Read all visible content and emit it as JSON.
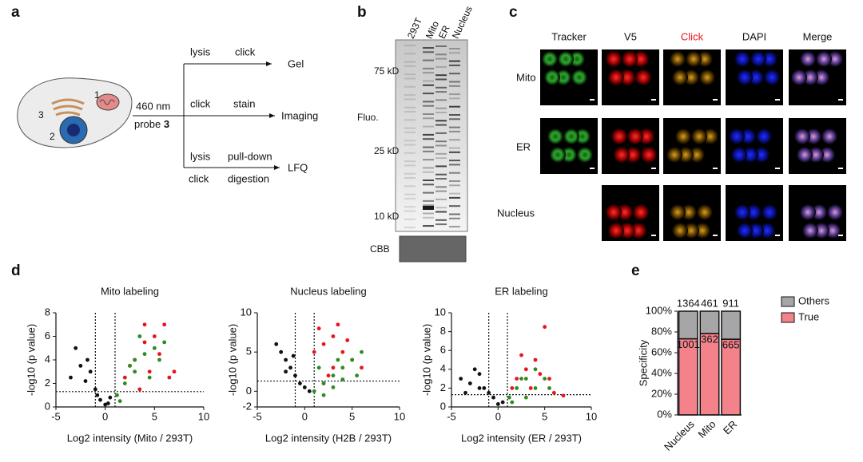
{
  "panel_labels": [
    "a",
    "b",
    "c",
    "d",
    "e"
  ],
  "panel_a": {
    "organelles": [
      "1",
      "2",
      "3"
    ],
    "light": "460 nm",
    "probe": "probe",
    "probe_number": "3",
    "branches": [
      {
        "above": [
          "lysis",
          "click"
        ],
        "below": [],
        "target": "Gel"
      },
      {
        "above": [
          "click",
          "stain"
        ],
        "below": [],
        "target": "Imaging"
      },
      {
        "above": [
          "lysis",
          "pull-down"
        ],
        "below": [
          "click",
          "digestion"
        ],
        "target": "LFQ"
      }
    ]
  },
  "panel_b": {
    "lanes": [
      "293T",
      "Mito",
      "ER",
      "Nucleus"
    ],
    "markers": [
      "75 kD",
      "25 kD",
      "10 kD"
    ],
    "stain": "Fluo.",
    "loading": "CBB"
  },
  "panel_c": {
    "columns": [
      "Tracker",
      "V5",
      "Click",
      "DAPI",
      "Merge"
    ],
    "rows": [
      "Mito",
      "ER",
      "Nucleus"
    ]
  },
  "chart_data": [
    {
      "type": "scatter",
      "title": "Mito labeling",
      "x_label": "Log2 intensity (Mito / 293T)",
      "y_label": "-log10 (p value)",
      "xlim": [
        -5,
        10
      ],
      "xticks": [
        -5,
        0,
        5,
        10
      ],
      "ylim": [
        0,
        8
      ],
      "yticks": [
        0,
        2,
        4,
        6,
        8
      ],
      "thresholds": {
        "x": [
          -1,
          1
        ],
        "y": 1.3
      },
      "series": [
        {
          "color": "#111111",
          "x": [
            -3,
            -2.5,
            -2,
            -1.5,
            -1,
            -0.5,
            0,
            0.5,
            -1.8,
            -3.5,
            -0.8,
            0.3
          ],
          "values": [
            5,
            3.5,
            2.2,
            3,
            1.5,
            0.6,
            0.2,
            0.8,
            4,
            2.5,
            1,
            0.3
          ]
        },
        {
          "color": "#e8141b",
          "x": [
            2,
            3,
            4,
            5,
            6,
            4.5,
            3.5,
            5.5,
            6.5,
            2.5,
            4,
            7
          ],
          "values": [
            2.5,
            4,
            5.5,
            6,
            7,
            3,
            1.5,
            4.5,
            2.5,
            3.5,
            7,
            3
          ]
        },
        {
          "color": "#2e8b22",
          "x": [
            1.2,
            2,
            3,
            4,
            5,
            3.5,
            2.5,
            4.5,
            1.5,
            5.5,
            3,
            6
          ],
          "values": [
            1,
            2,
            3,
            4.5,
            5,
            6,
            3.5,
            2.5,
            0.5,
            4,
            4,
            5.5
          ]
        }
      ]
    },
    {
      "type": "scatter",
      "title": "Nucleus labeling",
      "x_label": "Log2 intensity (H2B / 293T)",
      "y_label": "-log10 (p value)",
      "xlim": [
        -5,
        10
      ],
      "xticks": [
        -5,
        0,
        5,
        10
      ],
      "ylim": [
        -2,
        10
      ],
      "yticks": [
        -2,
        0,
        5,
        10
      ],
      "thresholds": {
        "x": [
          -1,
          1
        ],
        "y": 1.3
      },
      "series": [
        {
          "color": "#111111",
          "x": [
            -3,
            -2.5,
            -2,
            -1.5,
            -1,
            -0.5,
            0,
            0.5,
            -2,
            -1.2
          ],
          "values": [
            6,
            5,
            4,
            3,
            2,
            1,
            0.5,
            0,
            2.5,
            4.5
          ]
        },
        {
          "color": "#e8141b",
          "x": [
            1.5,
            2,
            3,
            4,
            5,
            3,
            2.5,
            4.5,
            1,
            3.5,
            6,
            2
          ],
          "values": [
            8,
            6,
            7,
            5,
            4,
            3,
            2,
            6.5,
            5,
            8.5,
            3,
            1
          ]
        },
        {
          "color": "#2e8b22",
          "x": [
            1,
            2,
            3,
            4,
            5,
            6,
            2,
            3,
            4,
            1.5,
            5.5,
            3.5
          ],
          "values": [
            0,
            1,
            2,
            3,
            4,
            5,
            -0.5,
            0.5,
            1.5,
            3,
            2,
            4
          ]
        }
      ]
    },
    {
      "type": "scatter",
      "title": "ER labeling",
      "x_label": "Log2 intensity (ER / 293T)",
      "y_label": "-log10 (p value)",
      "xlim": [
        -5,
        10
      ],
      "xticks": [
        -5,
        0,
        5,
        10
      ],
      "ylim": [
        0,
        10
      ],
      "yticks": [
        0,
        2,
        4,
        6,
        8,
        10
      ],
      "thresholds": {
        "x": [
          -1,
          1
        ],
        "y": 1.3
      },
      "series": [
        {
          "color": "#111111",
          "x": [
            -4,
            -3,
            -2.5,
            -2,
            -1.5,
            -1,
            -0.5,
            0,
            -3.5,
            -2,
            0.5
          ],
          "values": [
            3,
            2.5,
            4,
            3.5,
            2,
            1.5,
            1,
            0.3,
            1.5,
            2,
            0.5
          ]
        },
        {
          "color": "#e8141b",
          "x": [
            2,
            3,
            4,
            5,
            3.5,
            2.5,
            4.5,
            6,
            7,
            5.5,
            1.5
          ],
          "values": [
            3,
            4,
            5,
            8.5,
            2,
            5.5,
            3.5,
            1.5,
            1.2,
            3,
            2
          ]
        },
        {
          "color": "#2e8b22",
          "x": [
            1.2,
            2,
            3,
            4,
            5,
            3,
            2.5,
            4,
            1.5,
            5.5
          ],
          "values": [
            1,
            2,
            3,
            4,
            3,
            1,
            3,
            2,
            0.5,
            2
          ]
        }
      ]
    },
    {
      "type": "stacked_bar",
      "y_label": "Specificity",
      "categories": [
        "Nucleus",
        "Mito",
        "ER"
      ],
      "ylim": [
        0,
        100
      ],
      "yticks": [
        {
          "value": 0,
          "label": "0%"
        },
        {
          "value": 20,
          "label": "20%"
        },
        {
          "value": 40,
          "label": "40%"
        },
        {
          "value": 60,
          "label": "60%"
        },
        {
          "value": 80,
          "label": "80%"
        },
        {
          "value": 100,
          "label": "100%"
        }
      ],
      "legend": "right",
      "series": [
        {
          "name": "True",
          "color": "#f4828a",
          "values": [
            73.4,
            78.5,
            73.0
          ]
        },
        {
          "name": "Others",
          "color": "#a6a6a8",
          "values": [
            26.6,
            21.5,
            27.0
          ]
        }
      ],
      "true_counts": [
        1001,
        362,
        665
      ],
      "total_counts": [
        1364,
        461,
        911
      ]
    }
  ]
}
